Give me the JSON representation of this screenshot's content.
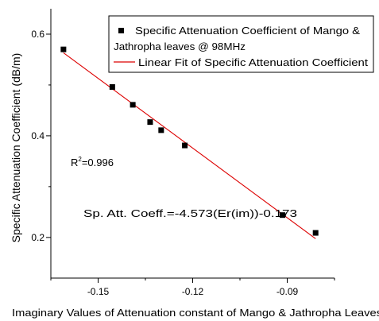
{
  "chart_data": {
    "type": "scatter",
    "xlabel": "Imaginary Values of Attenuation constant of Mango & Jathropha Leaves",
    "ylabel": "Specific Attenuation Coefficient (dB/m)",
    "xlim": [
      -0.165,
      -0.075
    ],
    "ylim": [
      0.12,
      0.65
    ],
    "x_ticks": [
      -0.15,
      -0.12,
      -0.09
    ],
    "x_tick_labels": [
      "-0.15",
      "-0.12",
      "-0.09"
    ],
    "x_minor_ticks": [
      -0.165,
      -0.135,
      -0.105,
      -0.075
    ],
    "y_ticks": [
      0.2,
      0.4,
      0.6
    ],
    "y_tick_labels": [
      "0.2",
      "0.4",
      "0.6"
    ],
    "y_minor_ticks": [
      0.3,
      0.5
    ],
    "grid": false,
    "legend_position": "top-right",
    "series": [
      {
        "name": "Specific Attenuation Coefficient of Mango & Jathropha leaves @ 98MHz",
        "marker": "square",
        "color": "#000000",
        "x": [
          -0.161,
          -0.1455,
          -0.139,
          -0.1335,
          -0.13,
          -0.1225,
          -0.0915,
          -0.081
        ],
        "y": [
          0.57,
          0.496,
          0.461,
          0.427,
          0.411,
          0.381,
          0.244,
          0.209
        ]
      },
      {
        "name": "Linear Fit of Specific Attenuation Coefficient",
        "type": "line",
        "color": "#dd0000",
        "x": [
          -0.161,
          -0.081
        ],
        "y": [
          0.5633,
          0.1975
        ]
      }
    ],
    "annotations": {
      "r2_prefix": "R",
      "r2_sup": "2",
      "r2_value": "=0.996",
      "equation": "Sp. Att. Coeff.=-4.573(Er(im))-0.173"
    }
  },
  "legend": {
    "line1": "Specific Attenuation Coefficient of Mango &",
    "line2": "Jathropha leaves @ 98MHz",
    "line3": "Linear Fit of Specific Attenuation Coefficient"
  }
}
